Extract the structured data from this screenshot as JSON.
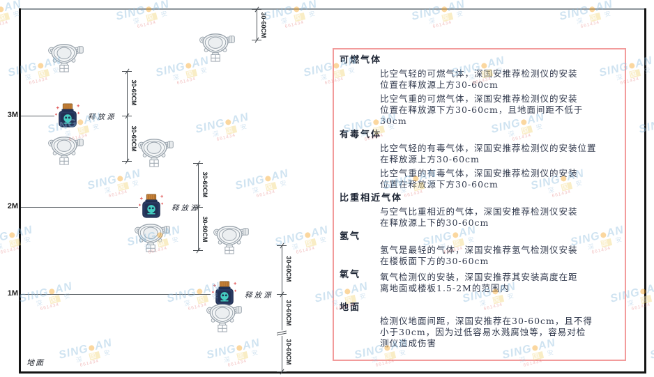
{
  "diagram": {
    "title_hint": "gas-detector-installation-height-diagram",
    "ground_label": "地面",
    "height_labels": [
      "3M",
      "2M",
      "1M"
    ],
    "release_source_label": "释放源",
    "dim_label": "30-60CM"
  },
  "panel": {
    "sections": [
      {
        "heading": "可燃气体",
        "inline": false,
        "paragraphs": [
          "比空气轻的可燃气体，深国安推荐检测仪的安装\n位置在释放源上方30-60cm",
          "比空气重的可燃气体，深国安推荐检测仪的安装\n位置在释放源下方30-60cm，且地面间距不低于\n30cm"
        ]
      },
      {
        "heading": "有毒气体",
        "inline": false,
        "paragraphs": [
          "比空气轻的有毒气体，深国安推荐检测仪的安装位置\n在释放源上方30-60cm",
          "比空气重的有毒气体，深国安推荐检测仪的安装\n位置在释放源下方30-60cm"
        ]
      },
      {
        "heading": "比重相近气体",
        "inline": false,
        "paragraphs": [
          "与空气比重相近的气体，深国安推荐检测仪安装\n在释放源上下的30-60cm"
        ]
      },
      {
        "heading": "氢气",
        "inline": false,
        "paragraphs": [
          "氢气是最轻的气体，深国安推荐氢气检测仪安装\n在楼板面下方的30-60cm"
        ]
      },
      {
        "heading": "氧气",
        "inline": true,
        "paragraphs": [
          "氧气检测仪的安装，深国安推荐其安装高度在距\n离地面或楼板1.5-2M的范围内"
        ]
      },
      {
        "heading": "地面",
        "inline": false,
        "gap_top": true,
        "paragraphs": [
          "检测仪地面间距，深国安推荐在30-60cm，且不得\n小于30cm，因为过低容易水溅腐蚀等，容易对检\n测仪造成伤害"
        ]
      }
    ]
  },
  "watermark": {
    "brand_left": "SING",
    "brand_right": "AN",
    "cjk_1": "深",
    "cjk_2": "国",
    "cjk_3": "安",
    "code": "661434"
  },
  "colors": {
    "panel_border": "#f29b9b",
    "watermark_blue": "#8fbede",
    "watermark_dot_orange": "#f6a21d",
    "bottle_navy": "#2a3b63",
    "bottle_cork_orange": "#c8833a",
    "bottle_skull_teal": "#45cfc2",
    "frame_black": "#141414",
    "dim_line_gray": "#4a4f54"
  }
}
